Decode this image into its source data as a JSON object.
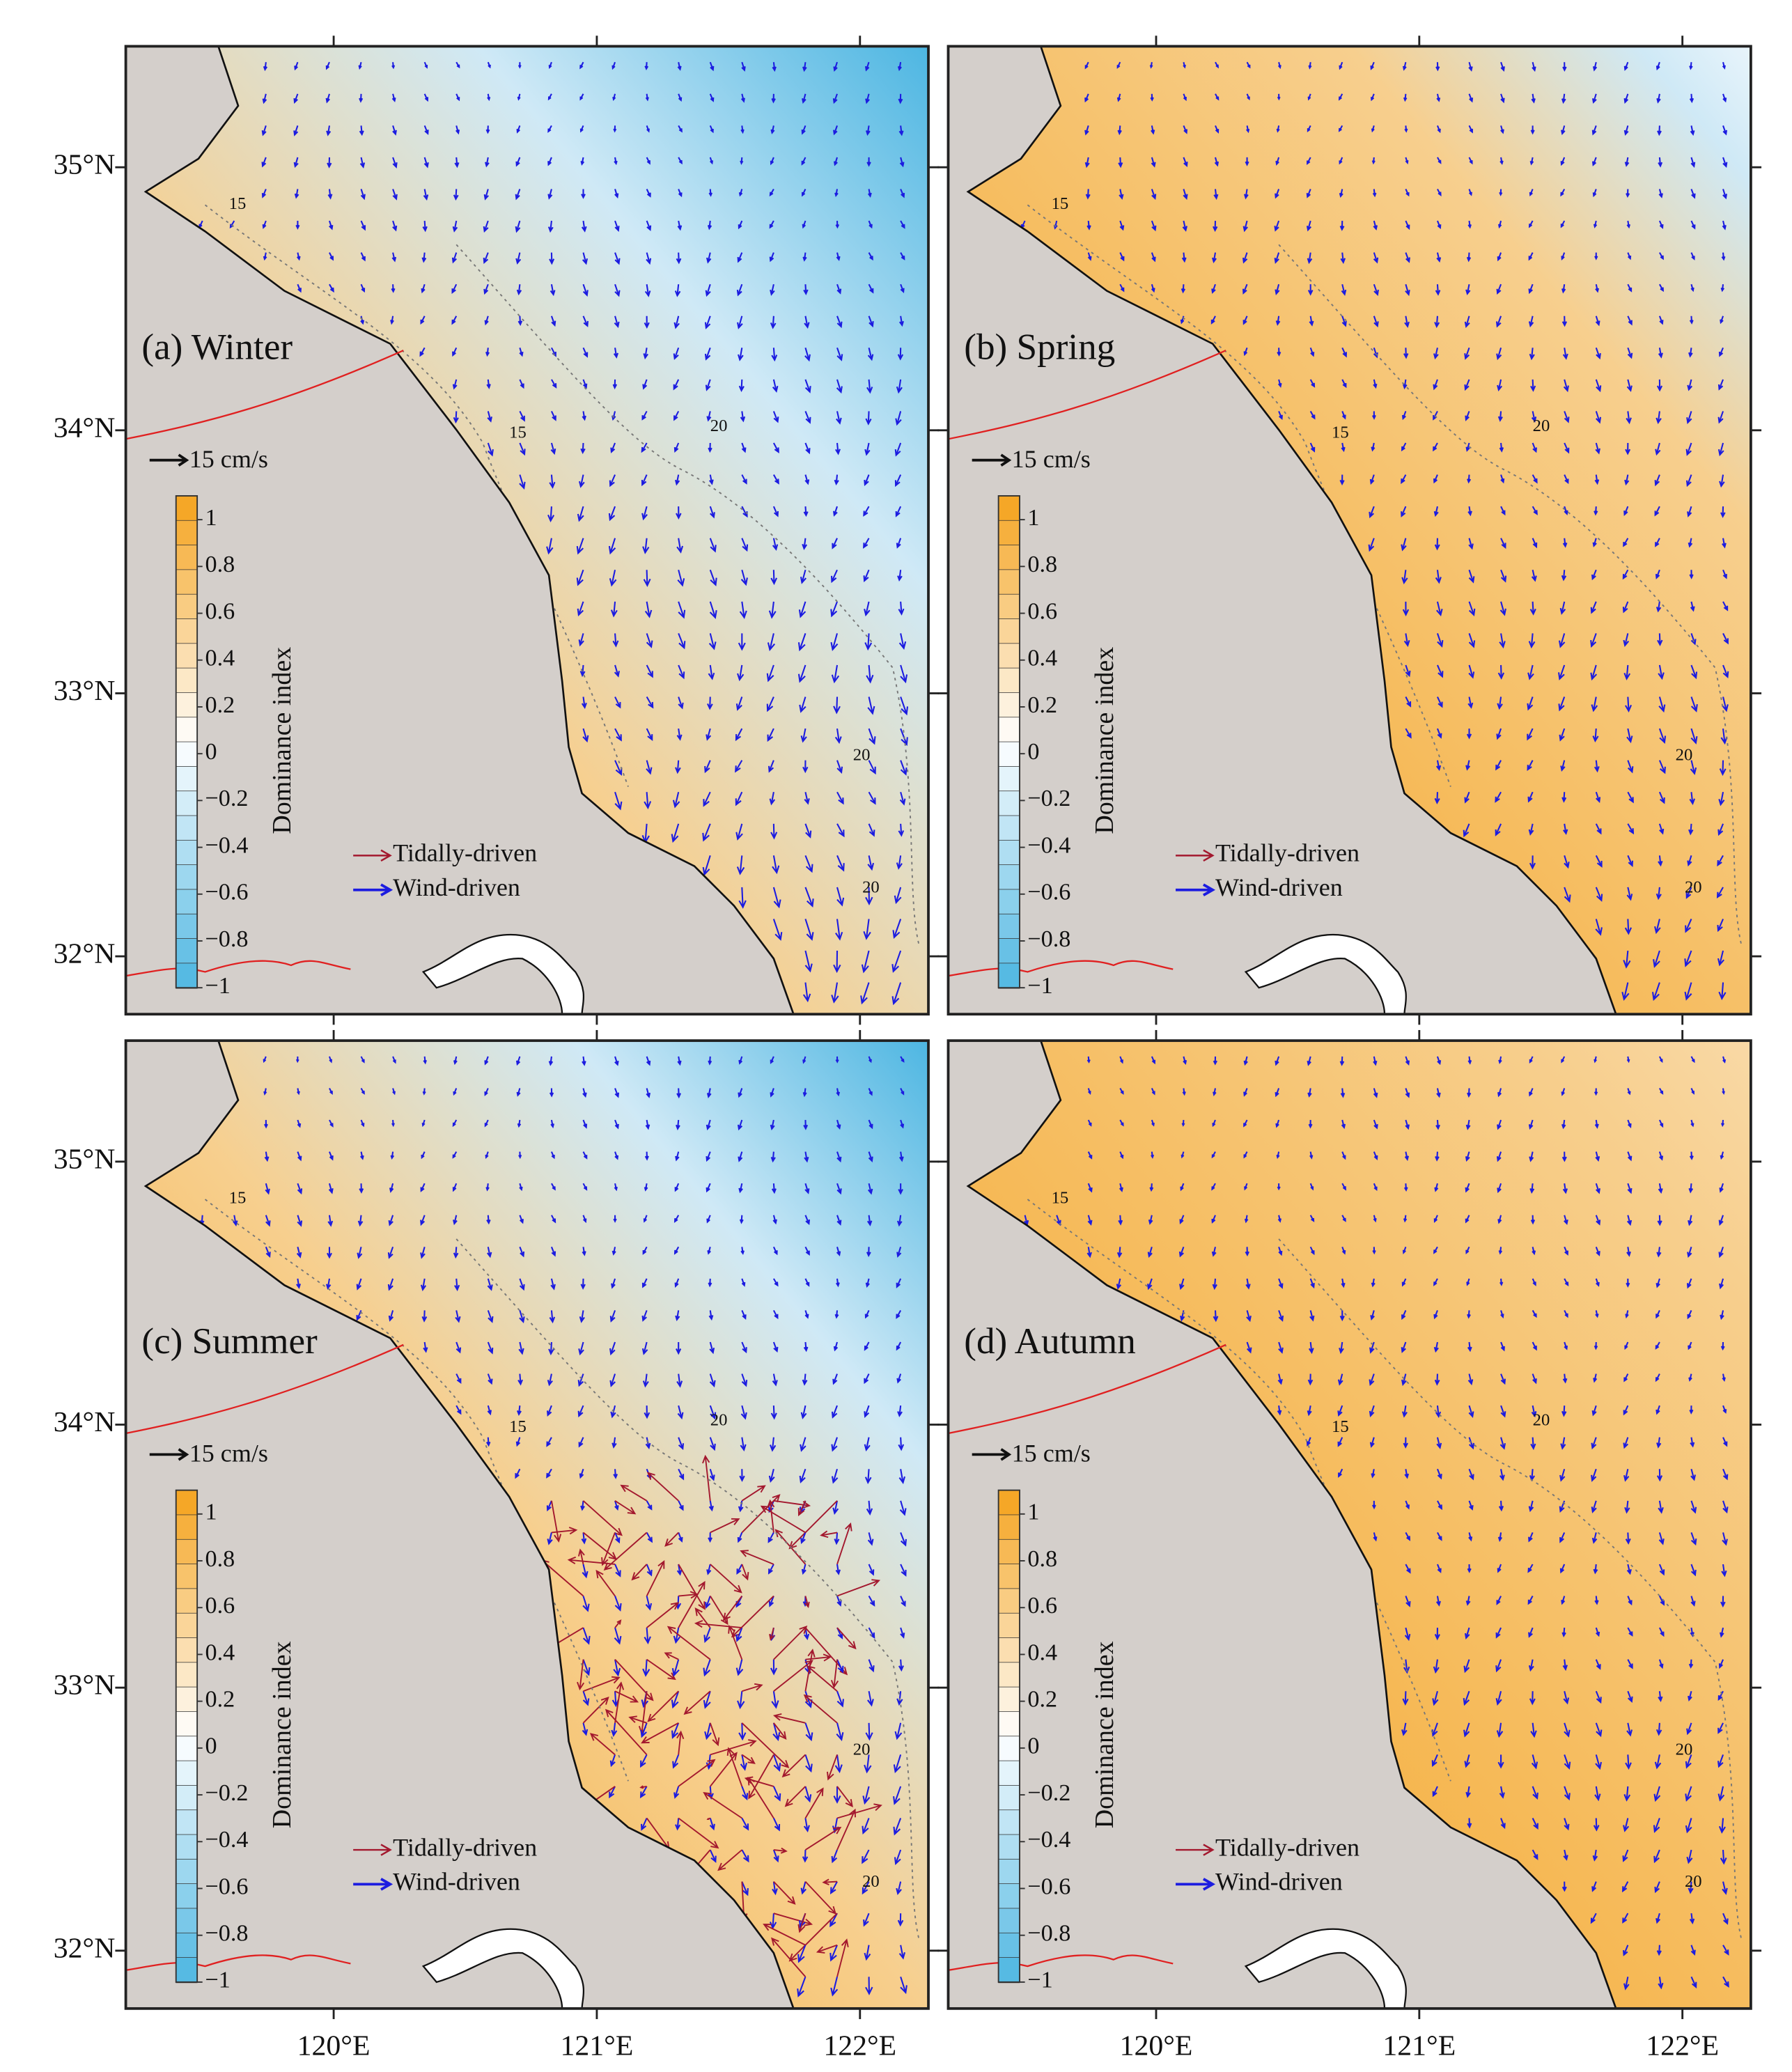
{
  "panels": [
    {
      "label": "(a) Winter"
    },
    {
      "label": "(b) Spring"
    },
    {
      "label": "(c) Summer"
    },
    {
      "label": "(d) Autumn"
    }
  ],
  "extent": {
    "lon": [
      119.21,
      122.26
    ],
    "lat": [
      31.78,
      35.46
    ]
  },
  "lon_ticks": [
    {
      "value": 120,
      "label": "120°E"
    },
    {
      "value": 121,
      "label": "121°E"
    },
    {
      "value": 122,
      "label": "122°E"
    }
  ],
  "lat_ticks": [
    {
      "value": 32,
      "label": "32°N"
    },
    {
      "value": 33,
      "label": "33°N"
    },
    {
      "value": 34,
      "label": "34°N"
    },
    {
      "value": 35,
      "label": "35°N"
    }
  ],
  "colorbar": {
    "title": "Dominance index",
    "range": [
      -1,
      1
    ],
    "colors": [
      "#4db6e2",
      "#ffffff",
      "#f4a21c"
    ],
    "ticks": [
      1,
      0.8,
      0.6,
      0.4,
      0.2,
      0,
      {
        "value": -0.2,
        "label": "−0.2"
      },
      {
        "value": -0.4,
        "label": "−0.4"
      },
      {
        "value": -0.6,
        "label": "−0.6"
      },
      {
        "value": -0.8,
        "label": "−0.8"
      },
      {
        "value": -1,
        "label": "−1"
      }
    ]
  },
  "legend": [
    {
      "name": "Tidally-driven",
      "color": "#a3182e"
    },
    {
      "name": "Wind-driven",
      "color": "#1c1ce0"
    }
  ],
  "scale_arrow": {
    "label": "15 cm/s"
  },
  "contours": [
    15,
    20
  ]
}
